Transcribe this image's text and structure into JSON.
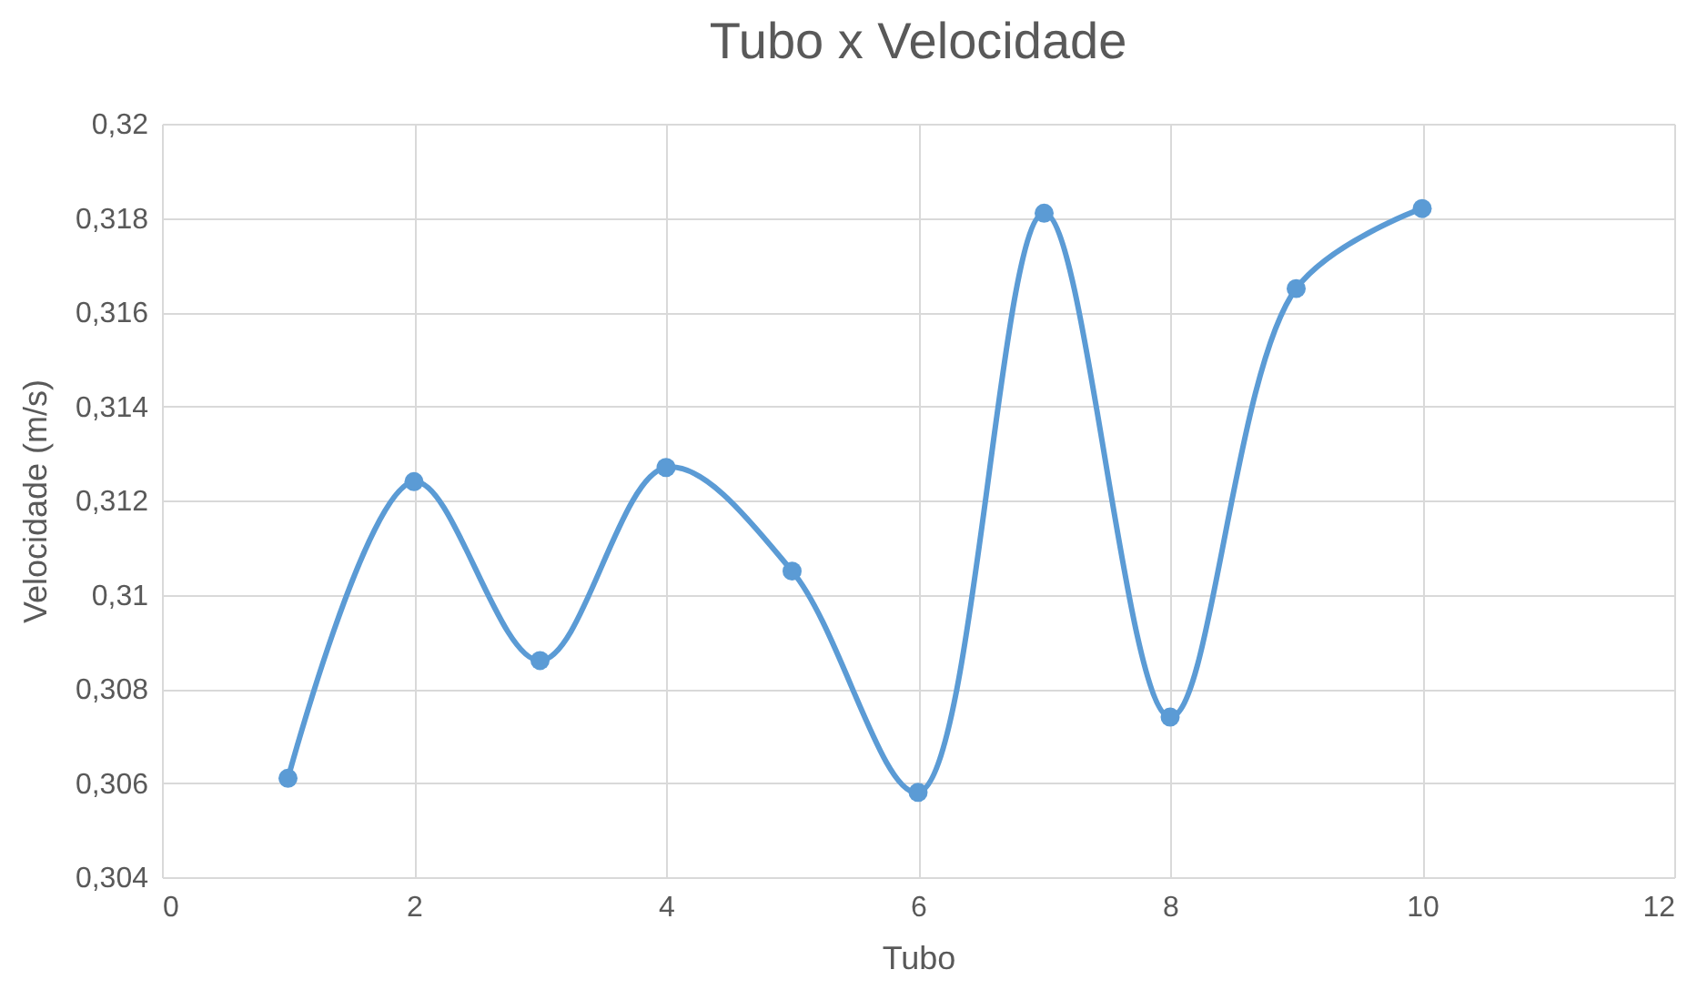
{
  "chart_data": {
    "type": "line",
    "title": "Tubo x Velocidade",
    "xlabel": "Tubo",
    "ylabel": "Velocidade (m/s)",
    "x": [
      1,
      2,
      3,
      4,
      5,
      6,
      7,
      8,
      9,
      10
    ],
    "series": [
      {
        "color": "#5b9bd5",
        "values": [
          0.3061,
          0.3124,
          0.3086,
          0.3127,
          0.3105,
          0.3058,
          0.3181,
          0.3074,
          0.3165,
          0.3182
        ]
      }
    ],
    "xlim": [
      0,
      12
    ],
    "xticks": [
      0,
      2,
      4,
      6,
      8,
      10,
      12
    ],
    "ylim": [
      0.304,
      0.32
    ],
    "yticks": [
      {
        "value": 0.304,
        "label": "0,304"
      },
      {
        "value": 0.306,
        "label": "0,306"
      },
      {
        "value": 0.308,
        "label": "0,308"
      },
      {
        "value": 0.31,
        "label": "0,31"
      },
      {
        "value": 0.312,
        "label": "0,312"
      },
      {
        "value": 0.314,
        "label": "0,314"
      },
      {
        "value": 0.316,
        "label": "0,316"
      },
      {
        "value": 0.318,
        "label": "0,318"
      },
      {
        "value": 0.32,
        "label": "0,32"
      }
    ],
    "grid": true,
    "marker": "circle",
    "line_style": "solid"
  }
}
